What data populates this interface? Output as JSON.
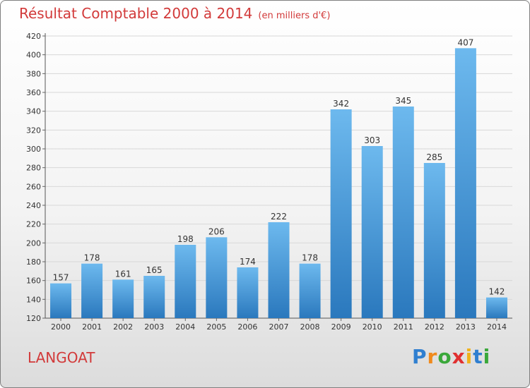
{
  "title": {
    "main": "Résultat Comptable 2000 à 2014",
    "unit": "(en milliers d'€)"
  },
  "commune": "LANGOAT",
  "brand": {
    "letters": [
      "P",
      "r",
      "o",
      "x",
      "i",
      "t",
      "i"
    ]
  },
  "colors": {
    "title": "#d23a3a",
    "bar_light": "#6db9ee",
    "bar_dark": "#2a78bd",
    "grid": "#d8d8d8"
  },
  "chart_data": {
    "type": "bar",
    "title": "Résultat Comptable 2000 à 2014",
    "xlabel": "",
    "ylabel": "",
    "ylim": [
      120,
      420
    ],
    "yticks": [
      120,
      140,
      160,
      180,
      200,
      220,
      240,
      260,
      280,
      300,
      320,
      340,
      360,
      380,
      400,
      420
    ],
    "grid": true,
    "categories": [
      "2000",
      "2001",
      "2002",
      "2003",
      "2004",
      "2005",
      "2006",
      "2007",
      "2008",
      "2009",
      "2010",
      "2011",
      "2012",
      "2013",
      "2014"
    ],
    "values": [
      157,
      178,
      161,
      165,
      198,
      206,
      174,
      222,
      178,
      342,
      303,
      345,
      285,
      407,
      142
    ]
  }
}
